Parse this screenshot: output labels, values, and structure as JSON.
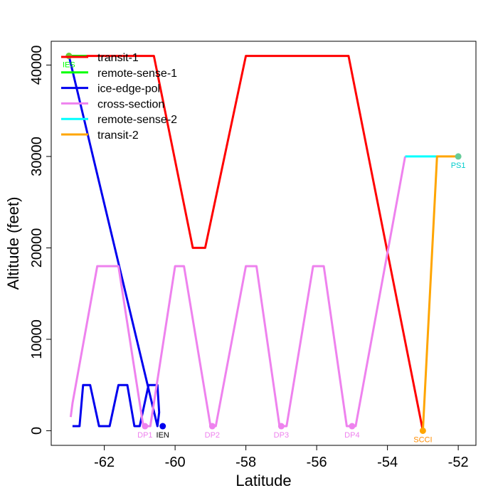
{
  "chart_data": {
    "type": "line",
    "title": "",
    "xlabel": "Latitude",
    "ylabel": "Altitude (feet)",
    "xlim": [
      -63.5,
      -51.5
    ],
    "ylim": [
      -1600,
      42600
    ],
    "x_ticks": [
      -62,
      -60,
      -58,
      -56,
      -54,
      -52
    ],
    "x_tick_labels": [
      "-62",
      "-60",
      "-58",
      "-56",
      "-54",
      "-52"
    ],
    "y_ticks": [
      0,
      10000,
      20000,
      30000,
      40000
    ],
    "y_tick_labels": [
      "0",
      "10000",
      "20000",
      "30000",
      "40000"
    ],
    "legend_position": "top-left",
    "series": [
      {
        "name": "transit-1",
        "color": "#ff0000",
        "points": [
          [
            -63.0,
            41000
          ],
          [
            -60.6,
            41000
          ],
          [
            -59.5,
            20000
          ],
          [
            -59.15,
            20000
          ],
          [
            -58.0,
            41000
          ],
          [
            -55.1,
            41000
          ],
          [
            -53.0,
            0
          ]
        ]
      },
      {
        "name": "remote-sense-1",
        "color": "#00ff00",
        "points": [
          [
            -63.0,
            41000
          ],
          [
            -62.5,
            41000
          ]
        ]
      },
      {
        "name": "ice-edge-pol",
        "color": "#0000ee",
        "points": [
          [
            -63.0,
            41000
          ],
          [
            -60.5,
            500
          ],
          [
            -60.45,
            2000
          ],
          [
            -60.5,
            5000
          ],
          [
            -60.75,
            5000
          ],
          [
            -61.0,
            500
          ],
          [
            -61.15,
            500
          ],
          [
            -61.35,
            5000
          ],
          [
            -61.6,
            5000
          ],
          [
            -61.85,
            500
          ],
          [
            -62.15,
            500
          ],
          [
            -62.4,
            5000
          ],
          [
            -62.6,
            5000
          ],
          [
            -62.7,
            500
          ],
          [
            -62.9,
            500
          ]
        ]
      },
      {
        "name": "cross-section",
        "color": "#ee82ee",
        "points": [
          [
            -62.95,
            1500
          ],
          [
            -62.9,
            3000
          ],
          [
            -62.2,
            18000
          ],
          [
            -61.6,
            18000
          ],
          [
            -60.9,
            500
          ],
          [
            -60.7,
            500
          ],
          [
            -60.0,
            18000
          ],
          [
            -59.75,
            18000
          ],
          [
            -59.0,
            500
          ],
          [
            -58.85,
            500
          ],
          [
            -58.0,
            18000
          ],
          [
            -57.7,
            18000
          ],
          [
            -57.05,
            500
          ],
          [
            -56.85,
            500
          ],
          [
            -56.1,
            18000
          ],
          [
            -55.8,
            18000
          ],
          [
            -55.15,
            500
          ],
          [
            -54.9,
            500
          ],
          [
            -53.5,
            30000
          ]
        ]
      },
      {
        "name": "remote-sense-2",
        "color": "#00ffff",
        "points": [
          [
            -53.5,
            30000
          ],
          [
            -52.6,
            30000
          ]
        ]
      },
      {
        "name": "transit-2",
        "color": "#ffa500",
        "points": [
          [
            -53.0,
            0
          ],
          [
            -52.6,
            30000
          ],
          [
            -52.0,
            30000
          ]
        ]
      }
    ],
    "waypoints": [
      {
        "label": "IES",
        "x": -63.0,
        "y": 41000,
        "color": "#00ff00",
        "marker_color": "#66cc33"
      },
      {
        "label": "DP1",
        "x": -60.85,
        "y": 500,
        "color": "#ee82ee",
        "marker_color": "#ee82ee"
      },
      {
        "label": "IEN",
        "x": -60.35,
        "y": 500,
        "color": "#000000",
        "marker_color": "#0000ee"
      },
      {
        "label": "DP2",
        "x": -58.95,
        "y": 500,
        "color": "#ee82ee",
        "marker_color": "#ee82ee"
      },
      {
        "label": "DP3",
        "x": -57.0,
        "y": 500,
        "color": "#ee82ee",
        "marker_color": "#ee82ee"
      },
      {
        "label": "DP4",
        "x": -55.0,
        "y": 500,
        "color": "#ee82ee",
        "marker_color": "#ee82ee"
      },
      {
        "label": "SCCI",
        "x": -53.0,
        "y": 0,
        "color": "#ff8c00",
        "marker_color": "#ffa500"
      },
      {
        "label": "PS1",
        "x": -52.0,
        "y": 30000,
        "color": "#00cccc",
        "marker_color": "#66cc99"
      }
    ]
  }
}
